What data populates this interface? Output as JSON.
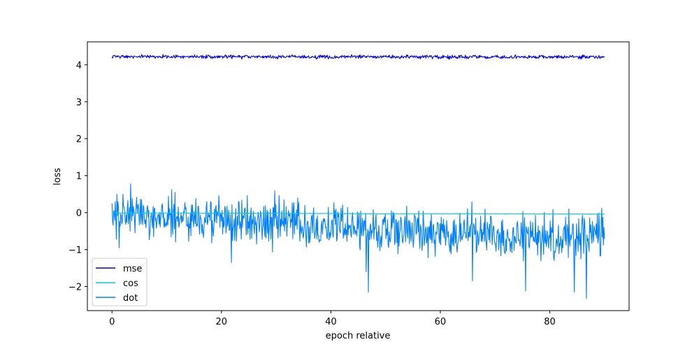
{
  "chart_data": {
    "type": "line",
    "title": "",
    "xlabel": "epoch relative",
    "ylabel": "loss",
    "xlim": [
      -4.5,
      94.5
    ],
    "ylim": [
      -2.65,
      4.62
    ],
    "x_ticks": [
      0,
      20,
      40,
      60,
      80
    ],
    "y_ticks": [
      -2,
      -1,
      0,
      1,
      2,
      3,
      4
    ],
    "x_tick_labels": [
      "0",
      "20",
      "40",
      "60",
      "80"
    ],
    "y_tick_labels": [
      "−2",
      "−1",
      "0",
      "1",
      "2",
      "3",
      "4"
    ],
    "grid": false,
    "legend_position": "lower-left",
    "n_points": 900,
    "x_range": [
      0,
      90
    ],
    "series": [
      {
        "name": "mse",
        "color": "#0000ee",
        "trend_x": [
          0,
          90
        ],
        "trend_y": [
          4.22,
          4.21
        ],
        "noise_amplitude": 0.025
      },
      {
        "name": "cos",
        "color": "#00c8e6",
        "trend_x": [
          0,
          10,
          30,
          50,
          70,
          90
        ],
        "trend_y": [
          -0.01,
          -0.01,
          -0.02,
          -0.03,
          -0.03,
          -0.04
        ],
        "noise_amplitude": 0.004
      },
      {
        "name": "dot",
        "color": "#0080ff",
        "trend_x": [
          0,
          5,
          10,
          20,
          30,
          40,
          50,
          60,
          70,
          80,
          90
        ],
        "trend_y": [
          -0.05,
          -0.05,
          -0.12,
          -0.2,
          -0.28,
          -0.36,
          -0.45,
          -0.52,
          -0.58,
          -0.62,
          -0.62
        ],
        "noise_amplitude": 0.3,
        "extreme_points": [
          [
            1.3,
            -0.95
          ],
          [
            2.0,
            0.5
          ],
          [
            11.5,
            0.55
          ],
          [
            21.8,
            -1.35
          ],
          [
            46.5,
            -1.6
          ],
          [
            46.9,
            -2.15
          ],
          [
            65.9,
            -1.85
          ],
          [
            75.6,
            -2.12
          ],
          [
            84.5,
            -2.15
          ],
          [
            86.7,
            -2.33
          ]
        ]
      }
    ]
  }
}
